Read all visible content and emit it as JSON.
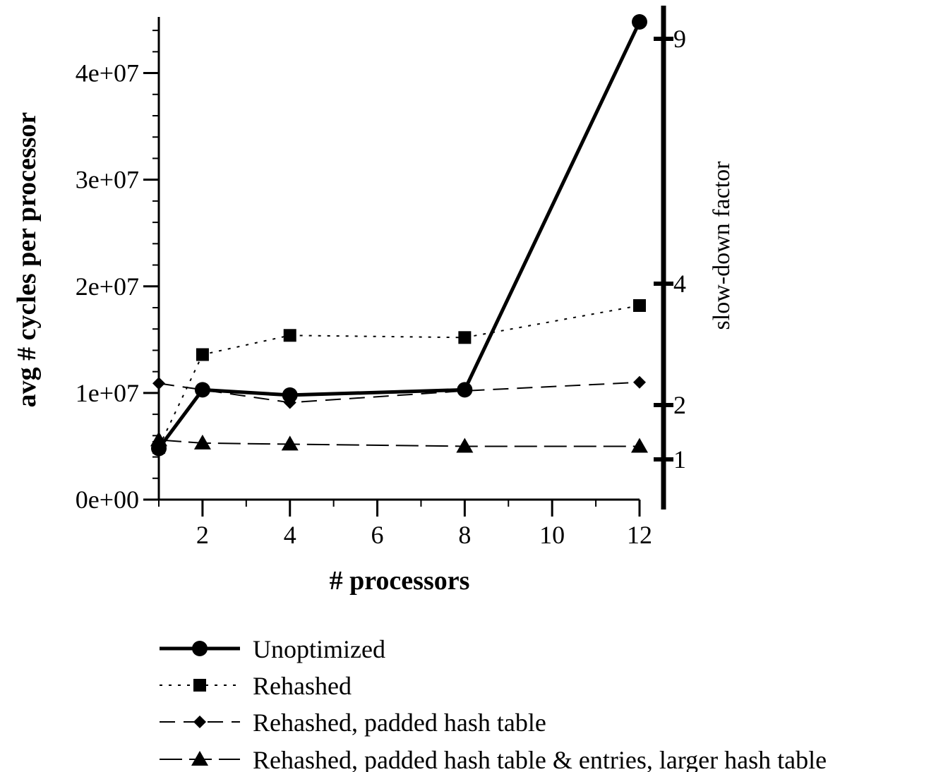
{
  "chart_data": {
    "type": "line",
    "xlabel": "# processors",
    "ylabel": "avg # cycles per processor",
    "y2label": "slow-down factor",
    "xlim": [
      1,
      12
    ],
    "ylim": [
      0,
      45000000
    ],
    "x_ticks": [
      2,
      4,
      6,
      8,
      10,
      12
    ],
    "x_tick_labels": [
      "2",
      "4",
      "6",
      "8",
      "10",
      "12"
    ],
    "y_ticks": [
      0,
      10000000,
      20000000,
      30000000,
      40000000
    ],
    "y_tick_labels": [
      "0e+00",
      "1e+07",
      "2e+07",
      "3e+07",
      "4e+07"
    ],
    "y2_ticks": [
      1,
      2,
      4,
      9
    ],
    "y2_tick_labels": [
      "1",
      "2",
      "4",
      "9"
    ],
    "y2_scale": "log",
    "x": [
      1,
      2,
      4,
      8,
      12
    ],
    "series": [
      {
        "name": "Unoptimized",
        "values": [
          4800000,
          10300000,
          9800000,
          10300000,
          44800000
        ],
        "line_style": "solid-thick",
        "marker": "circle"
      },
      {
        "name": "Rehashed",
        "values": [
          4900000,
          13600000,
          15400000,
          15200000,
          18200000
        ],
        "line_style": "dotted",
        "marker": "square"
      },
      {
        "name": "Rehashed, padded hash table",
        "values": [
          10900000,
          10300000,
          9100000,
          10200000,
          11000000
        ],
        "line_style": "dashed",
        "marker": "diamond"
      },
      {
        "name": "Rehashed, padded hash table & entries, larger hash table",
        "values": [
          5600000,
          5300000,
          5200000,
          5000000,
          5000000
        ],
        "line_style": "long-dashed",
        "marker": "triangle"
      }
    ],
    "legend_position": "bottom",
    "grid": false
  }
}
